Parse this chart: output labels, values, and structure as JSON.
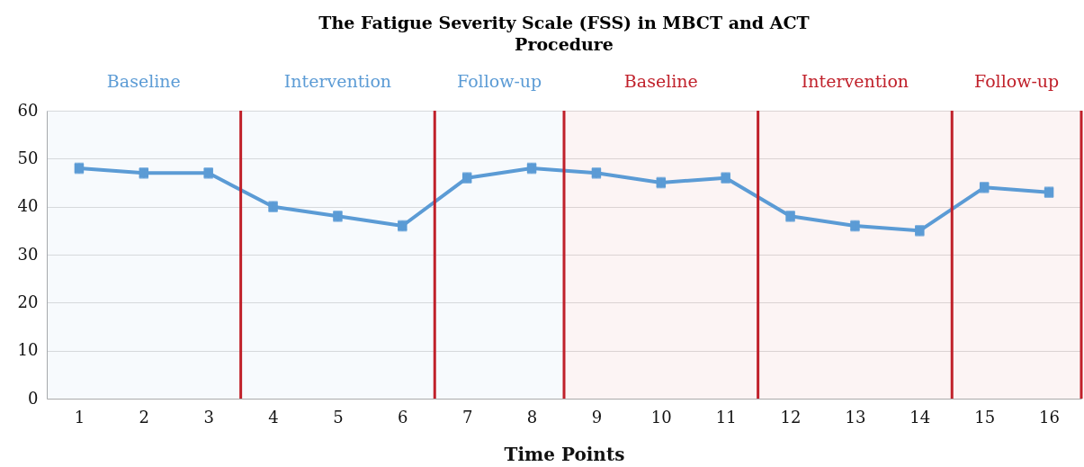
{
  "chart_data": {
    "type": "line",
    "title": "The Fatigue Severity Scale (FSS) in MBCT and ACT Procedure",
    "xlabel": "Time Points",
    "x": [
      1,
      2,
      3,
      4,
      5,
      6,
      7,
      8,
      9,
      10,
      11,
      12,
      13,
      14,
      15,
      16
    ],
    "series": [
      {
        "color": "#5b9bd5",
        "values": [
          48,
          47,
          47,
          40,
          38,
          36,
          46,
          48,
          47,
          45,
          46,
          38,
          36,
          35,
          44,
          43
        ],
        "errors": [
          1,
          1,
          1,
          1,
          1,
          1,
          1,
          1,
          1,
          1,
          1,
          1,
          1,
          1,
          1,
          1
        ]
      }
    ],
    "xlim": [
      0.5,
      16.5
    ],
    "xticks": [
      1,
      2,
      3,
      4,
      5,
      6,
      7,
      8,
      9,
      10,
      11,
      12,
      13,
      14,
      15,
      16
    ],
    "ylim": [
      0,
      60
    ],
    "yticks": [
      0,
      10,
      20,
      30,
      40,
      50,
      60
    ],
    "grid": "y",
    "marker": "square",
    "line_style": "solid",
    "ref_lines": [
      {
        "axis": "x",
        "value": 3.5,
        "color": "#c0202a"
      },
      {
        "axis": "x",
        "value": 6.5,
        "color": "#c0202a"
      },
      {
        "axis": "x",
        "value": 8.5,
        "color": "#c0202a"
      },
      {
        "axis": "x",
        "value": 11.5,
        "color": "#c0202a"
      },
      {
        "axis": "x",
        "value": 14.5,
        "color": "#c0202a"
      },
      {
        "axis": "x",
        "value": 16.5,
        "color": "#c0202a"
      }
    ],
    "bands": [
      {
        "axis": "x",
        "from": 0.5,
        "to": 3.5,
        "label": "Baseline",
        "color": "#5b9bd5"
      },
      {
        "axis": "x",
        "from": 3.5,
        "to": 6.5,
        "label": "Intervention",
        "color": "#5b9bd5"
      },
      {
        "axis": "x",
        "from": 6.5,
        "to": 8.5,
        "label": "Follow-up",
        "color": "#5b9bd5"
      },
      {
        "axis": "x",
        "from": 8.5,
        "to": 11.5,
        "label": "Baseline",
        "color": "#c0202a"
      },
      {
        "axis": "x",
        "from": 11.5,
        "to": 14.5,
        "label": "Intervention",
        "color": "#c0202a"
      },
      {
        "axis": "x",
        "from": 14.5,
        "to": 16.5,
        "label": "Follow-up",
        "color": "#c0202a"
      }
    ]
  }
}
